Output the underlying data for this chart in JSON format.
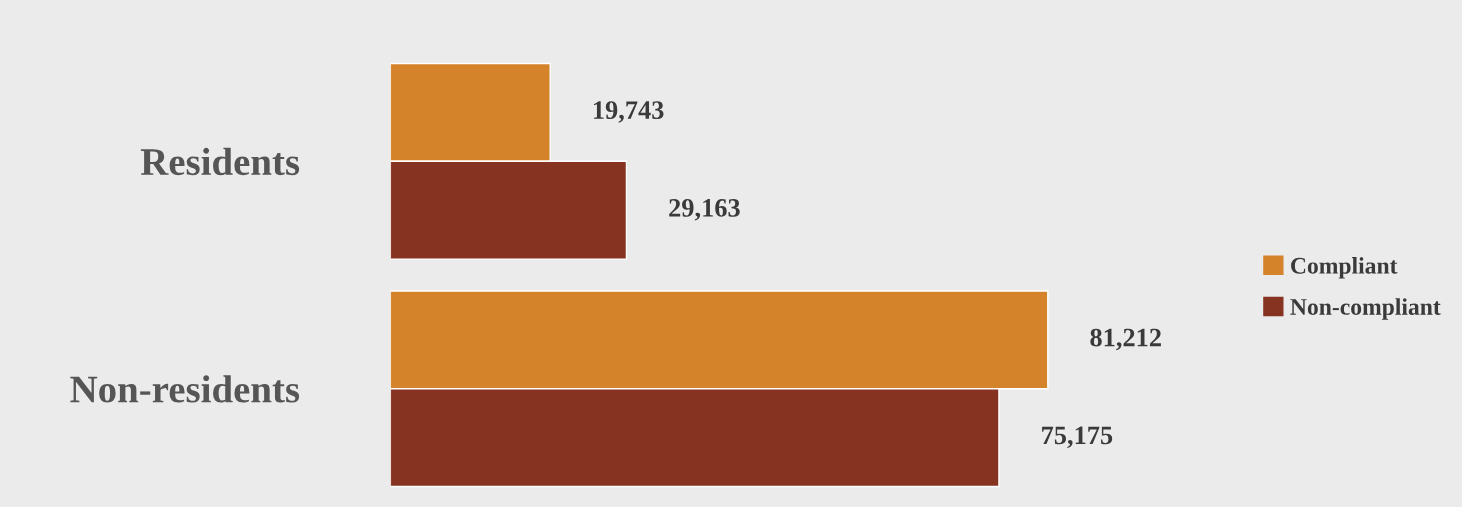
{
  "chart_data": {
    "type": "bar",
    "orientation": "horizontal",
    "categories": [
      "Residents",
      "Non-residents"
    ],
    "series": [
      {
        "name": "Compliant",
        "color": "#d4832b",
        "values": [
          19743,
          81212
        ],
        "value_labels": [
          "19,743",
          "81,212"
        ]
      },
      {
        "name": "Non-compliant",
        "color": "#863322",
        "values": [
          29163,
          75175
        ],
        "value_labels": [
          "29,163",
          "75,175"
        ]
      }
    ],
    "legend": "right",
    "grid": false
  }
}
